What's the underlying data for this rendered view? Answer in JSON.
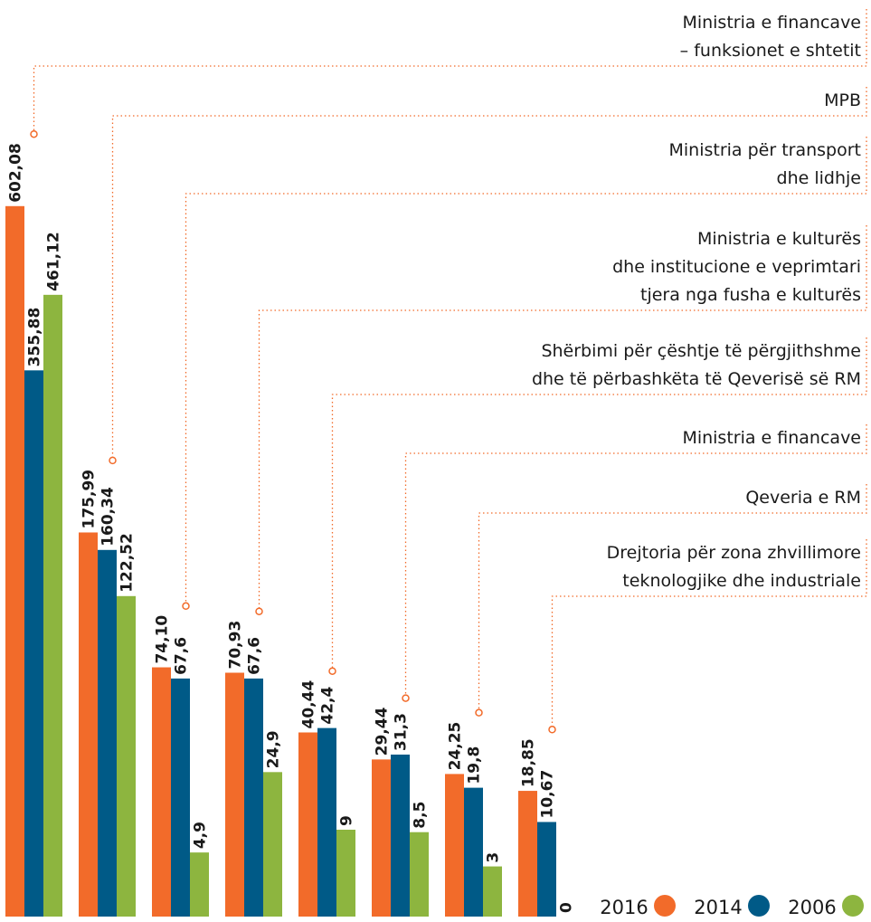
{
  "chart_data": {
    "type": "bar",
    "categories": [
      [
        "Ministria e financave",
        "– funksionet e shtetit"
      ],
      [
        "MPB"
      ],
      [
        "Ministria për transport",
        "dhe lidhje"
      ],
      [
        "Ministria e kulturës",
        "dhe institucione e veprimtari",
        "tjera nga fusha e kulturës"
      ],
      [
        "Shërbimi për çështje të përgjithshme",
        "dhe të përbashkëta të Qeverisë së RM"
      ],
      [
        "Ministria e financave"
      ],
      [
        "Qeveria e RM"
      ],
      [
        "Drejtoria për zona zhvillimore",
        "teknologjike dhe industriale"
      ]
    ],
    "series": [
      {
        "name": "2016",
        "color": "#f26b2a",
        "values": [
          602.08,
          175.99,
          74.1,
          70.93,
          40.44,
          29.44,
          24.25,
          18.85
        ],
        "value_labels": [
          "602,08",
          "175,99",
          "74,10",
          "70,93",
          "40,44",
          "29,44",
          "24,25",
          "18,85"
        ]
      },
      {
        "name": "2014",
        "color": "#005a87",
        "values": [
          355.88,
          160.34,
          67.6,
          67.6,
          42.4,
          31.3,
          19.8,
          10.67
        ],
        "value_labels": [
          "355,88",
          "160,34",
          "67,6",
          "67,6",
          "42,4",
          "31,3",
          "19,8",
          "10,67"
        ]
      },
      {
        "name": "2006",
        "color": "#8db53f",
        "values": [
          461.12,
          122.52,
          4.9,
          24.9,
          9,
          8.5,
          3,
          0
        ],
        "value_labels": [
          "461,12",
          "122,52",
          "4,9",
          "24,9",
          "9",
          "8,5",
          "3",
          "0"
        ]
      }
    ]
  }
}
